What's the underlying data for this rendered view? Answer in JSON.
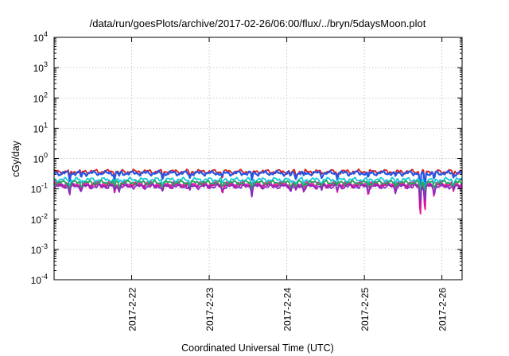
{
  "chart_data": {
    "type": "line",
    "title": "/data/run/goesPlots/archive/2017-02-26/06:00/flux/../bryn/5daysMoon.plot",
    "xlabel": "Coordinated Universal Time (UTC)",
    "ylabel": "cGy/day",
    "yscale": "log",
    "ylim": [
      0.0001,
      10000
    ],
    "y_ticks": [
      {
        "value": 0.0001,
        "base": "10",
        "exp": "-4"
      },
      {
        "value": 0.001,
        "base": "10",
        "exp": "-3"
      },
      {
        "value": 0.01,
        "base": "10",
        "exp": "-2"
      },
      {
        "value": 0.1,
        "base": "10",
        "exp": "-1"
      },
      {
        "value": 1,
        "base": "10",
        "exp": "0"
      },
      {
        "value": 10,
        "base": "10",
        "exp": "1"
      },
      {
        "value": 100,
        "base": "10",
        "exp": "2"
      },
      {
        "value": 1000,
        "base": "10",
        "exp": "3"
      },
      {
        "value": 10000,
        "base": "10",
        "exp": "4"
      }
    ],
    "x_range_days": [
      0,
      5.26
    ],
    "x_ticks": [
      {
        "day": 1,
        "label": "2017-2-22"
      },
      {
        "day": 2,
        "label": "2017-2-23"
      },
      {
        "day": 3,
        "label": "2017-2-24"
      },
      {
        "day": 4,
        "label": "2017-2-25"
      },
      {
        "day": 5,
        "label": "2017-2-26"
      }
    ],
    "grid": true,
    "legend": "none",
    "dips": [
      {
        "day": 0.2,
        "depth": 0.45
      },
      {
        "day": 0.35,
        "depth": 0.3
      },
      {
        "day": 0.78,
        "depth": 0.35
      },
      {
        "day": 0.84,
        "depth": 0.25
      },
      {
        "day": 1.4,
        "depth": 0.4
      },
      {
        "day": 1.75,
        "depth": 0.3
      },
      {
        "day": 2.17,
        "depth": 0.35
      },
      {
        "day": 2.55,
        "depth": 0.45
      },
      {
        "day": 3.05,
        "depth": 0.3
      },
      {
        "day": 3.12,
        "depth": 0.35
      },
      {
        "day": 3.22,
        "depth": 0.3
      },
      {
        "day": 3.45,
        "depth": 0.25
      },
      {
        "day": 3.65,
        "depth": 0.3
      },
      {
        "day": 4.05,
        "depth": 0.4
      },
      {
        "day": 4.4,
        "depth": 0.3
      },
      {
        "day": 4.72,
        "depth": 0.9
      },
      {
        "day": 4.78,
        "depth": 0.85
      },
      {
        "day": 4.9,
        "depth": 0.45
      },
      {
        "day": 5.15,
        "depth": 0.3
      }
    ],
    "series": [
      {
        "color": "#e0109a",
        "base": 0.13,
        "fill": true
      },
      {
        "color": "#d81e1e",
        "base": 0.37
      },
      {
        "color": "#2456e8",
        "base": 0.33
      },
      {
        "color": "#18c8d8",
        "base": 0.2
      },
      {
        "color": "#1fa85a",
        "base": 0.16
      },
      {
        "color": "#8a2bc0",
        "base": 0.12
      }
    ]
  }
}
